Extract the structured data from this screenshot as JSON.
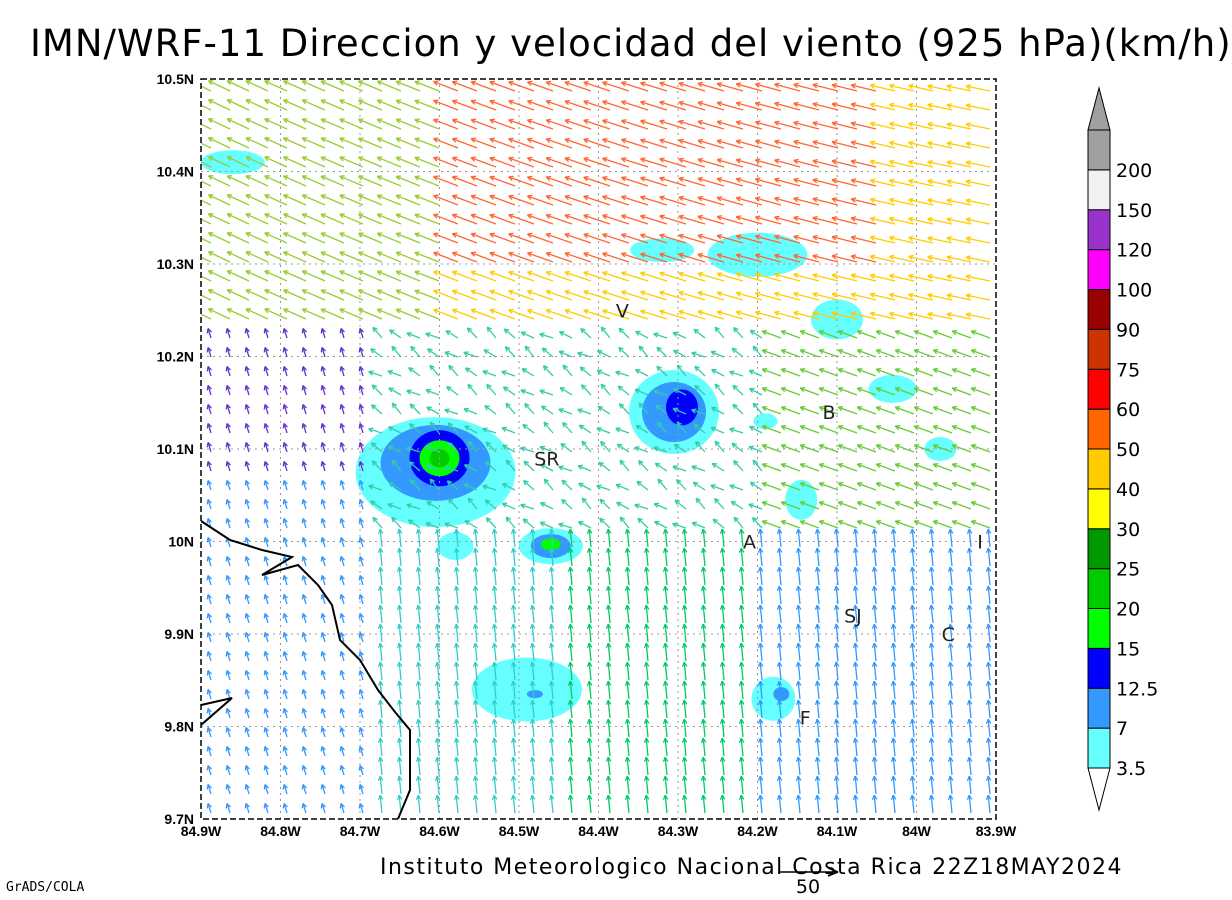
{
  "title": "IMN/WRF-11 Direccion y velocidad del viento (925 hPa)(km/h)",
  "footer": "Instituto Meteorologico Nacional Costa Rica 22Z18MAY2024",
  "software": "GrADS/COLA",
  "lon_labels": [
    "84.9W",
    "84.8W",
    "84.7W",
    "84.6W",
    "84.5W",
    "84.4W",
    "84.3W",
    "84.2W",
    "84.1W",
    "84W",
    "83.9W"
  ],
  "lat_labels": [
    "10.5N",
    "10.4N",
    "10.3N",
    "10.2N",
    "10.1N",
    "10N",
    "9.9N",
    "9.8N",
    "9.7N"
  ],
  "extent": {
    "lon_min": -84.9,
    "lon_max": -83.9,
    "lat_min": 9.7,
    "lat_max": 10.5
  },
  "places": [
    {
      "label": "V",
      "lon": -84.37,
      "lat": 10.25
    },
    {
      "label": "SR",
      "lon": -84.465,
      "lat": 10.09
    },
    {
      "label": "B",
      "lon": -84.11,
      "lat": 10.14
    },
    {
      "label": "A",
      "lon": -84.21,
      "lat": 10.0
    },
    {
      "label": "I",
      "lon": -83.92,
      "lat": 10.0
    },
    {
      "label": "SJ",
      "lon": -84.08,
      "lat": 9.92
    },
    {
      "label": "C",
      "lon": -83.96,
      "lat": 9.9
    },
    {
      "label": "F",
      "lon": -84.14,
      "lat": 9.81
    }
  ],
  "reference_vector": {
    "label": "50"
  },
  "colorbar": {
    "levels": [
      "3.5",
      "7",
      "12.5",
      "15",
      "20",
      "25",
      "30",
      "40",
      "50",
      "60",
      "75",
      "90",
      "100",
      "120",
      "150",
      "200"
    ],
    "colors": [
      "#66ffff",
      "#3399ff",
      "#0000ff",
      "#00ff00",
      "#00cc00",
      "#009900",
      "#ffff00",
      "#ffcc00",
      "#ff6600",
      "#ff0000",
      "#cc3300",
      "#990000",
      "#ff00ff",
      "#9933cc",
      "#f2f2f2",
      "#a0a0a0"
    ]
  },
  "shaded_regions": [
    {
      "name": "SR-core",
      "lon": -84.6,
      "lat": 10.09,
      "level": 20
    },
    {
      "name": "center",
      "lon": -84.46,
      "lat": 9.995,
      "level": 20
    },
    {
      "name": "east-core",
      "lon": -84.3,
      "lat": 10.14,
      "level": 15
    }
  ]
}
